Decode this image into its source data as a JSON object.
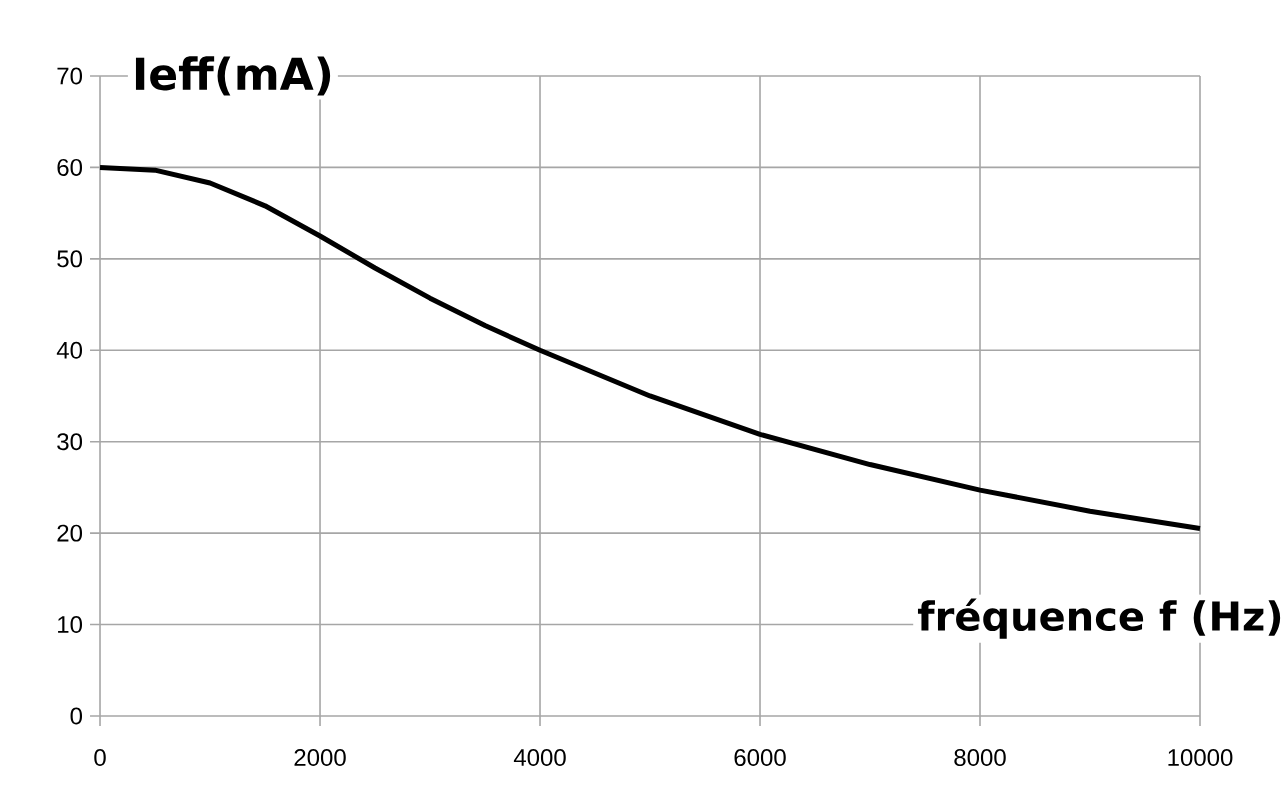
{
  "chart_data": {
    "type": "line",
    "xlabel": "fréquence f (Hz)",
    "ylabel": "Ieff(mA)",
    "x": [
      0,
      500,
      1000,
      1500,
      2000,
      2500,
      3000,
      3500,
      4000,
      5000,
      6000,
      7000,
      8000,
      9000,
      10000
    ],
    "series": [
      {
        "color": "#000000",
        "values": [
          60,
          59.7,
          58.3,
          55.8,
          52.5,
          49,
          45.7,
          42.7,
          40,
          35,
          30.8,
          27.5,
          24.7,
          22.4,
          20.5
        ]
      }
    ],
    "xlim": [
      0,
      10000
    ],
    "ylim": [
      0,
      70
    ],
    "xticks": [
      0,
      2000,
      4000,
      6000,
      8000,
      10000
    ],
    "yticks": [
      0,
      10,
      20,
      30,
      40,
      50,
      60,
      70
    ],
    "grid": true,
    "marker": "none",
    "line_style": "solid"
  }
}
